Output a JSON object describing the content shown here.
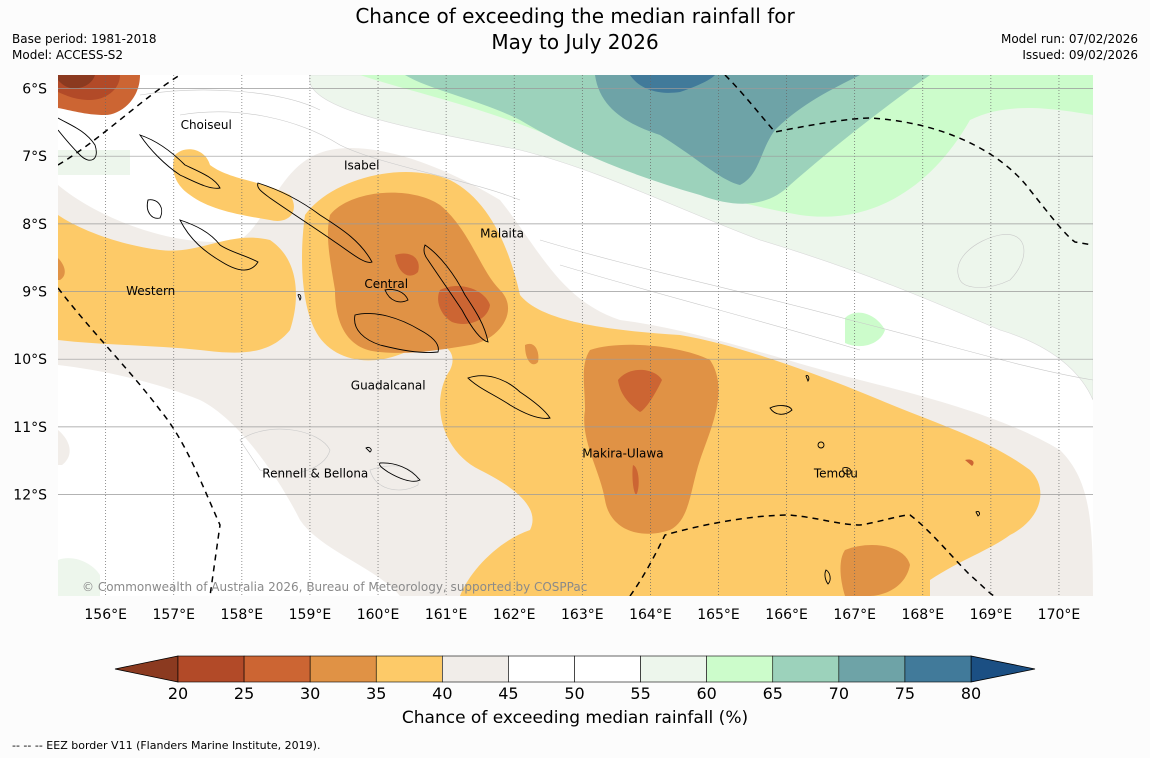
{
  "title": {
    "line1": "Chance of exceeding the median rainfall for",
    "line2": "May to July 2026"
  },
  "meta": {
    "base_period": "Base period: 1981-2018",
    "model": "Model: ACCESS-S2",
    "model_run": "Model run: 07/02/2026",
    "issued": "Issued: 09/02/2026"
  },
  "map": {
    "lon_ticks": [
      "156°E",
      "157°E",
      "158°E",
      "159°E",
      "160°E",
      "161°E",
      "162°E",
      "163°E",
      "164°E",
      "165°E",
      "166°E",
      "167°E",
      "168°E",
      "169°E",
      "170°E"
    ],
    "lon_values": [
      156,
      157,
      158,
      159,
      160,
      161,
      162,
      163,
      164,
      165,
      166,
      167,
      168,
      169,
      170
    ],
    "lat_ticks": [
      "6°S",
      "7°S",
      "8°S",
      "9°S",
      "10°S",
      "11°S",
      "12°S"
    ],
    "lat_values": [
      -6,
      -7,
      -8,
      -9,
      -10,
      -11,
      -12
    ],
    "lon_range": [
      155.3,
      170.5
    ],
    "lat_range": [
      -5.8,
      -13.5
    ],
    "province_labels": [
      {
        "name": "Choiseul",
        "lon": 157.1,
        "lat": -6.6
      },
      {
        "name": "Isabel",
        "lon": 159.5,
        "lat": -7.2
      },
      {
        "name": "Malaita",
        "lon": 161.5,
        "lat": -8.2
      },
      {
        "name": "Western",
        "lon": 156.3,
        "lat": -9.05
      },
      {
        "name": "Central",
        "lon": 159.8,
        "lat": -8.95
      },
      {
        "name": "Guadalcanal",
        "lon": 159.6,
        "lat": -10.45
      },
      {
        "name": "Makira-Ulawa",
        "lon": 163.0,
        "lat": -11.45
      },
      {
        "name": "Rennell & Bellona",
        "lon": 158.3,
        "lat": -11.75
      },
      {
        "name": "Temotu",
        "lon": 166.4,
        "lat": -11.75
      }
    ],
    "copyright": "© Commonwealth of Australia 2026, Bureau of Meteorology, supported by COSPPac"
  },
  "legend": {
    "labels": [
      "20",
      "25",
      "30",
      "35",
      "40",
      "45",
      "50",
      "55",
      "60",
      "65",
      "70",
      "75",
      "80"
    ],
    "colors": [
      "#8b3a20",
      "#b24a28",
      "#cc6533",
      "#e09245",
      "#fdca68",
      "#f1ede9",
      "#ffffff",
      "#ffffff",
      "#edf6ec",
      "#ccfccb",
      "#9cd2bb",
      "#6ea3a7",
      "#417a9a",
      "#1b4f83"
    ],
    "title": "Chance of exceeding median rainfall (%)"
  },
  "footnote": "--  --  -- EEZ border V11 (Flanders Marine Institute, 2019)."
}
